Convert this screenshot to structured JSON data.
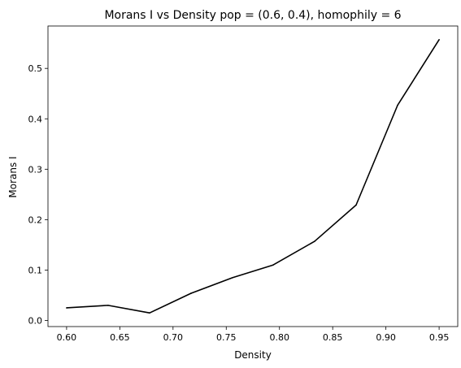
{
  "chart_data": {
    "type": "line",
    "title": "Morans I vs Density pop = (0.6, 0.4), homophily = 6",
    "xlabel": "Density",
    "ylabel": "Morans I",
    "x": [
      0.6,
      0.639,
      0.678,
      0.717,
      0.756,
      0.794,
      0.833,
      0.872,
      0.911,
      0.95
    ],
    "series": [
      {
        "values": [
          0.025,
          0.03,
          0.015,
          0.054,
          0.085,
          0.11,
          0.157,
          0.229,
          0.427,
          0.557
        ],
        "color": "#000000"
      }
    ],
    "xlim": [
      0.5825,
      0.9675
    ],
    "ylim": [
      -0.0121,
      0.5841
    ],
    "xticks": [
      0.6,
      0.65,
      0.7,
      0.75,
      0.8,
      0.85,
      0.9,
      0.95
    ],
    "xtick_labels": [
      "0.60",
      "0.65",
      "0.70",
      "0.75",
      "0.80",
      "0.85",
      "0.90",
      "0.95"
    ],
    "yticks": [
      0.0,
      0.1,
      0.2,
      0.3,
      0.4,
      0.5
    ],
    "ytick_labels": [
      "0.0",
      "0.1",
      "0.2",
      "0.3",
      "0.4",
      "0.5"
    ],
    "grid": false,
    "legend": "none"
  }
}
